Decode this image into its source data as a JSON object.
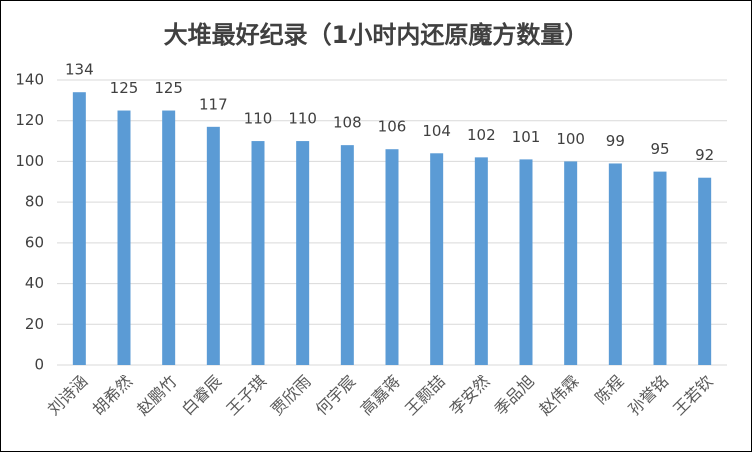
{
  "chart_data": {
    "type": "bar",
    "title": "大堆最好纪录（1小时内还原魔方数量）",
    "categories": [
      "刘诗涵",
      "胡希然",
      "赵鹏竹",
      "白睿辰",
      "王子琪",
      "贾欣雨",
      "何宇宸",
      "高嘉蒋",
      "王颢喆",
      "李安然",
      "季品旭",
      "赵伟霖",
      "陈程",
      "孙誉铭",
      "王若钦"
    ],
    "values": [
      134,
      125,
      125,
      117,
      110,
      110,
      108,
      106,
      104,
      102,
      101,
      100,
      99,
      95,
      92
    ],
    "color": "#5b9bd5",
    "ylim": [
      0,
      140
    ],
    "yticks": [
      0,
      20,
      40,
      60,
      80,
      100,
      120,
      140
    ],
    "grid": true
  }
}
